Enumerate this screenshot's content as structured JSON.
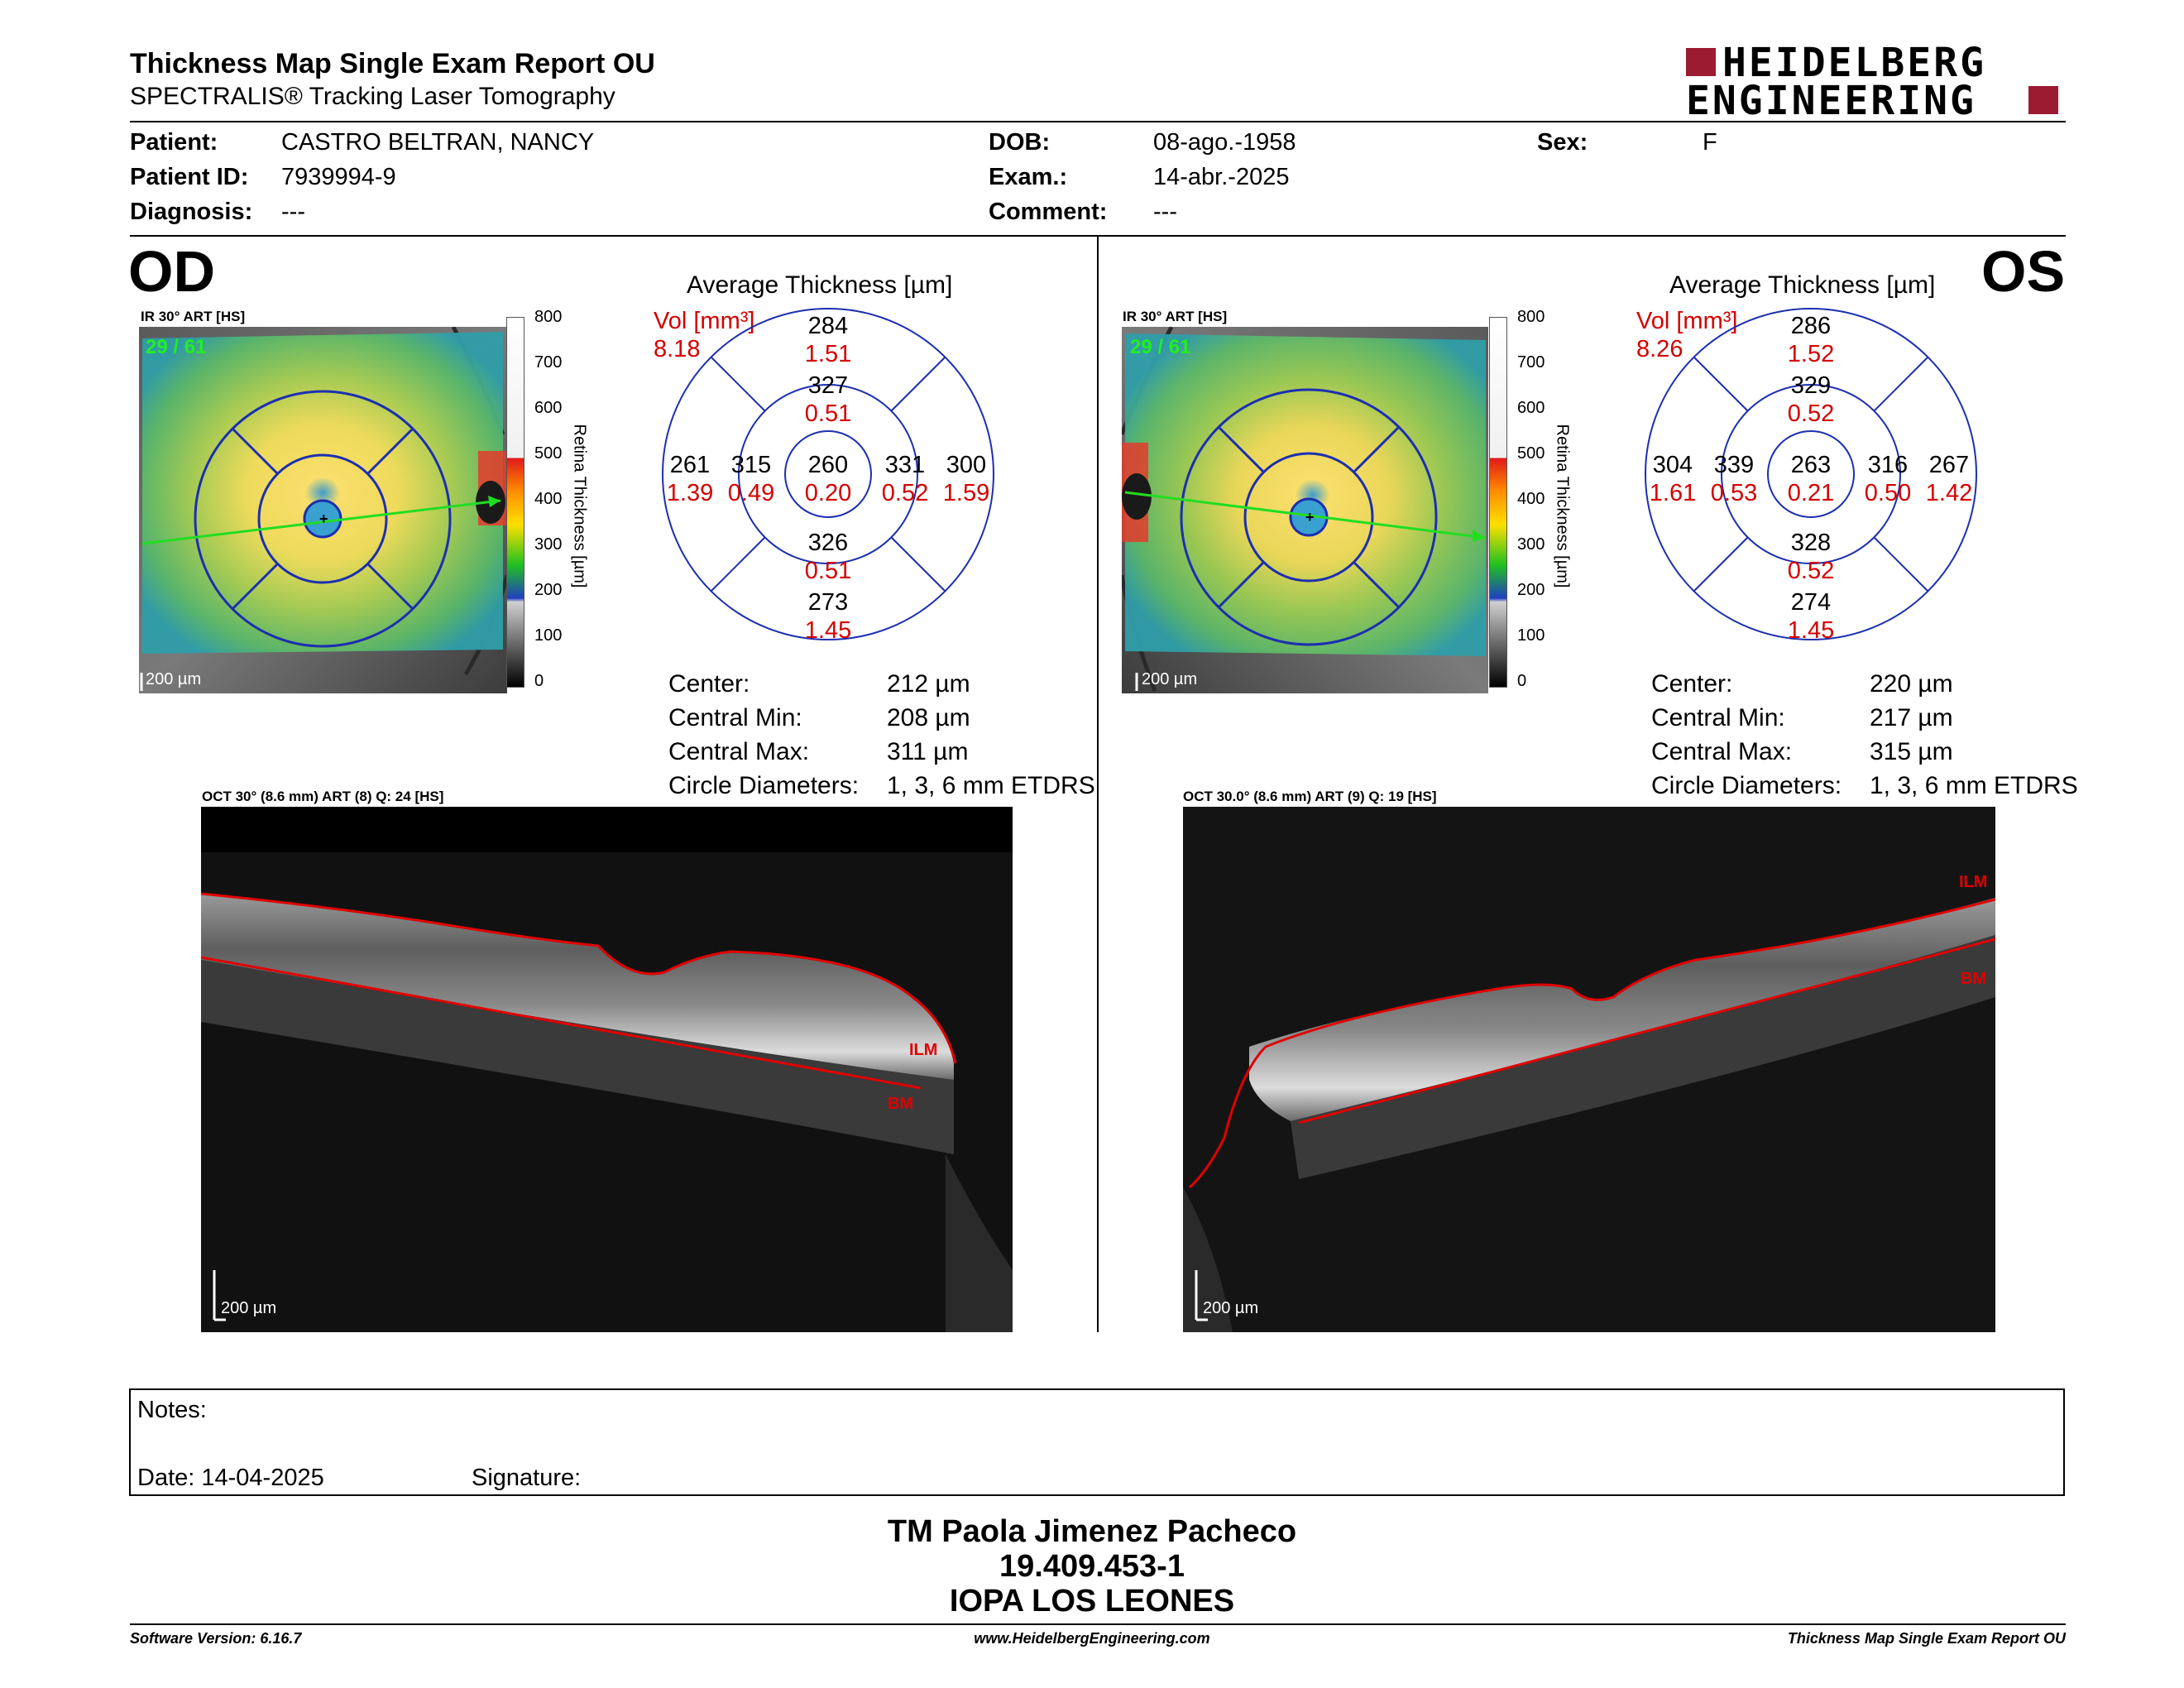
{
  "header": {
    "title": "Thickness Map Single Exam Report OU",
    "subtitle": "SPECTRALIS® Tracking Laser Tomography",
    "logo_line1": "HEIDELBERG",
    "logo_line2": "ENGINEERING",
    "logo_color": "#9b1b30"
  },
  "patient": {
    "patient_label": "Patient:",
    "patient_value": "CASTRO BELTRAN, NANCY",
    "id_label": "Patient ID:",
    "id_value": "7939994-9",
    "diagnosis_label": "Diagnosis:",
    "diagnosis_value": "---",
    "dob_label": "DOB:",
    "dob_value": "08-ago.-1958",
    "exam_label": "Exam.:",
    "exam_value": "14-abr.-2025",
    "comment_label": "Comment:",
    "comment_value": "---",
    "sex_label": "Sex:",
    "sex_value": "F"
  },
  "od": {
    "eye": "OD",
    "ir_label": "IR 30° ART [HS]",
    "ir_counter": "29 / 61",
    "scale": "200 µm",
    "colorbar_ticks": [
      "800",
      "700",
      "600",
      "500",
      "400",
      "300",
      "200",
      "100",
      "0"
    ],
    "colorbar_label": "Retina Thickness [µm]",
    "avg_title": "Average Thickness [µm]",
    "vol_label": "Vol [mm³]",
    "vol_value": "8.18",
    "sectors": {
      "outer_top": {
        "t": "284",
        "v": "1.51"
      },
      "inner_top": {
        "t": "327",
        "v": "0.51"
      },
      "outer_left": {
        "t": "261",
        "v": "1.39"
      },
      "inner_left": {
        "t": "315",
        "v": "0.49"
      },
      "center": {
        "t": "260",
        "v": "0.20"
      },
      "inner_right": {
        "t": "331",
        "v": "0.52"
      },
      "outer_right": {
        "t": "300",
        "v": "1.59"
      },
      "inner_bottom": {
        "t": "326",
        "v": "0.51"
      },
      "outer_bottom": {
        "t": "273",
        "v": "1.45"
      }
    },
    "stats": {
      "center_label": "Center:",
      "center_value": "212 µm",
      "min_label": "Central Min:",
      "min_value": "208 µm",
      "max_label": "Central Max:",
      "max_value": "311 µm",
      "diam_label": "Circle Diameters:",
      "diam_value": "1, 3, 6 mm ETDRS"
    },
    "oct_label": "OCT 30° (8.6 mm) ART (8) Q: 24 [HS]",
    "ilm": "ILM",
    "bm": "BM",
    "oct_scale": "200 µm"
  },
  "os": {
    "eye": "OS",
    "ir_label": "IR 30° ART [HS]",
    "ir_counter": "29 / 61",
    "scale": "200 µm",
    "colorbar_ticks": [
      "800",
      "700",
      "600",
      "500",
      "400",
      "300",
      "200",
      "100",
      "0"
    ],
    "colorbar_label": "Retina Thickness [µm]",
    "avg_title": "Average Thickness [µm]",
    "vol_label": "Vol [mm³]",
    "vol_value": "8.26",
    "sectors": {
      "outer_top": {
        "t": "286",
        "v": "1.52"
      },
      "inner_top": {
        "t": "329",
        "v": "0.52"
      },
      "outer_left": {
        "t": "304",
        "v": "1.61"
      },
      "inner_left": {
        "t": "339",
        "v": "0.53"
      },
      "center": {
        "t": "263",
        "v": "0.21"
      },
      "inner_right": {
        "t": "316",
        "v": "0.50"
      },
      "outer_right": {
        "t": "267",
        "v": "1.42"
      },
      "inner_bottom": {
        "t": "328",
        "v": "0.52"
      },
      "outer_bottom": {
        "t": "274",
        "v": "1.45"
      }
    },
    "stats": {
      "center_label": "Center:",
      "center_value": "220 µm",
      "min_label": "Central Min:",
      "min_value": "217 µm",
      "max_label": "Central Max:",
      "max_value": "315 µm",
      "diam_label": "Circle Diameters:",
      "diam_value": "1, 3, 6 mm ETDRS"
    },
    "oct_label": "OCT 30.0° (8.6 mm) ART (9) Q: 19 [HS]",
    "ilm": "ILM",
    "bm": "BM",
    "oct_scale": "200 µm"
  },
  "notes": {
    "notes_label": "Notes:",
    "date_label": "Date: 14-04-2025",
    "signature_label": "Signature:"
  },
  "signature_block": {
    "name": "TM Paola Jimenez Pacheco",
    "rut": "19.409.453-1",
    "institution": "IOPA LOS LEONES"
  },
  "footer": {
    "software": "Software Version: 6.16.7",
    "website": "www.HeidelbergEngineering.com",
    "report": "Thickness Map Single Exam Report OU"
  }
}
